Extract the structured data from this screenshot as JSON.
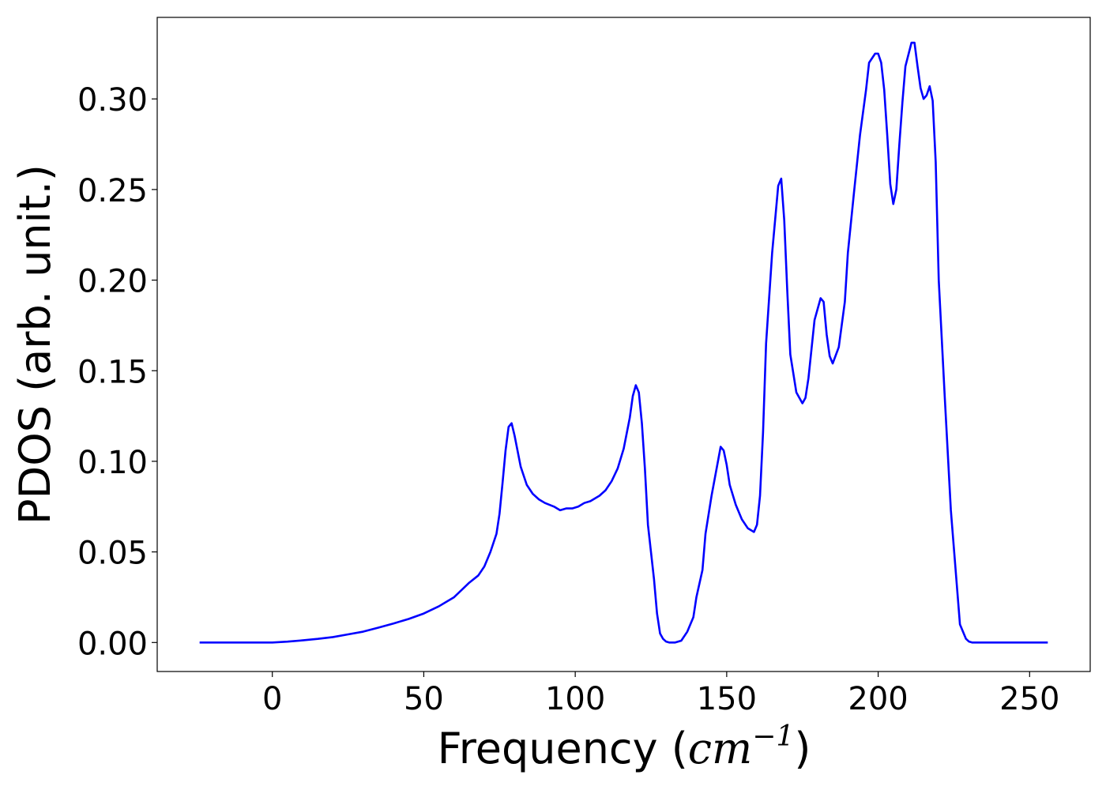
{
  "chart_data": {
    "type": "line",
    "title": "",
    "xlabel": "Frequency ($cm^{-1}$)",
    "xlabel_parts": {
      "prefix": "Frequency (",
      "unit_base": "cm",
      "unit_exp": "−1",
      "suffix": ")"
    },
    "ylabel": "PDOS (arb. unit.)",
    "xlim": [
      -38,
      270
    ],
    "ylim": [
      -0.016,
      0.345
    ],
    "xticks": [
      0,
      50,
      100,
      150,
      200,
      250
    ],
    "xtick_labels": [
      "0",
      "50",
      "100",
      "150",
      "200",
      "250"
    ],
    "yticks": [
      0.0,
      0.05,
      0.1,
      0.15,
      0.2,
      0.25,
      0.3
    ],
    "ytick_labels": [
      "0.00",
      "0.05",
      "0.10",
      "0.15",
      "0.20",
      "0.25",
      "0.30"
    ],
    "grid": false,
    "legend": false,
    "series": [
      {
        "color": "#0000ff",
        "x": [
          -24,
          -10,
          0,
          5,
          10,
          15,
          20,
          25,
          30,
          35,
          40,
          45,
          50,
          55,
          60,
          63,
          65,
          68,
          70,
          72,
          74,
          75,
          76,
          77,
          78,
          79,
          80,
          82,
          84,
          86,
          88,
          90,
          93,
          95,
          97,
          99,
          101,
          103,
          105,
          108,
          110,
          112,
          114,
          116,
          118,
          119,
          120,
          121,
          122,
          123,
          124,
          126,
          127,
          128,
          129,
          130,
          131,
          133,
          135,
          137,
          139,
          140,
          142,
          143,
          145,
          147,
          148,
          149,
          150,
          151,
          153,
          155,
          157,
          159,
          160,
          161,
          162,
          163,
          165,
          167,
          168,
          169,
          170,
          171,
          173,
          175,
          176,
          177,
          178,
          179,
          181,
          182,
          183,
          184,
          185,
          187,
          189,
          190,
          192,
          194,
          196,
          197,
          199,
          200,
          201,
          202,
          203,
          204,
          205,
          206,
          207,
          208,
          209,
          211,
          212,
          213,
          214,
          215,
          216,
          217,
          218,
          219,
          220,
          222,
          224,
          226,
          227,
          229,
          230,
          231,
          232,
          233,
          234,
          235,
          236,
          238,
          240,
          245,
          256
        ],
        "y": [
          0.0,
          0.0,
          0.0,
          0.0005,
          0.0012,
          0.002,
          0.003,
          0.0045,
          0.006,
          0.0082,
          0.0105,
          0.013,
          0.016,
          0.02,
          0.025,
          0.0298,
          0.033,
          0.037,
          0.042,
          0.05,
          0.06,
          0.071,
          0.088,
          0.106,
          0.119,
          0.121,
          0.114,
          0.097,
          0.087,
          0.082,
          0.079,
          0.077,
          0.075,
          0.073,
          0.074,
          0.074,
          0.075,
          0.077,
          0.078,
          0.081,
          0.084,
          0.089,
          0.096,
          0.107,
          0.124,
          0.136,
          0.142,
          0.138,
          0.121,
          0.096,
          0.065,
          0.035,
          0.016,
          0.005,
          0.002,
          0.0005,
          0.0,
          0.0,
          0.001,
          0.006,
          0.014,
          0.025,
          0.04,
          0.06,
          0.081,
          0.099,
          0.108,
          0.106,
          0.098,
          0.087,
          0.076,
          0.068,
          0.063,
          0.061,
          0.065,
          0.081,
          0.116,
          0.165,
          0.215,
          0.252,
          0.256,
          0.233,
          0.194,
          0.159,
          0.138,
          0.132,
          0.135,
          0.146,
          0.162,
          0.178,
          0.19,
          0.188,
          0.17,
          0.158,
          0.154,
          0.163,
          0.188,
          0.215,
          0.248,
          0.28,
          0.305,
          0.32,
          0.325,
          0.325,
          0.32,
          0.305,
          0.28,
          0.253,
          0.242,
          0.25,
          0.275,
          0.298,
          0.318,
          0.331,
          0.331,
          0.318,
          0.306,
          0.3,
          0.302,
          0.307,
          0.299,
          0.265,
          0.2,
          0.135,
          0.073,
          0.031,
          0.01,
          0.002,
          0.0005,
          0.0,
          0.0,
          0.0,
          0.0,
          0.0,
          0.0,
          0.0,
          0.0,
          0.0,
          0.0
        ]
      }
    ]
  }
}
